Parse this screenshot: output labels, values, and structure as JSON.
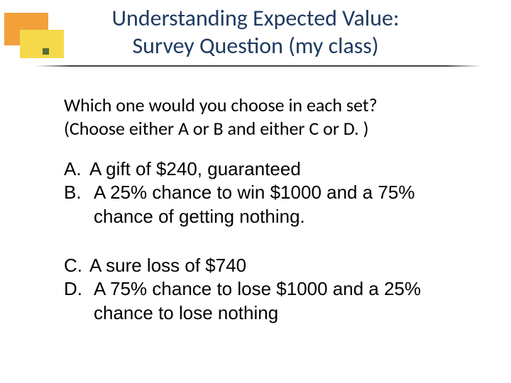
{
  "colors": {
    "orange": "#f2a13a",
    "yellow": "#f5d94a",
    "bullet": "#5a6b3a",
    "title_color": "#1f3b60",
    "body_color": "#000000",
    "hr_color": "#404040",
    "background": "#ffffff"
  },
  "typography": {
    "title_font": "Calibri",
    "title_fontsize_pt": 24,
    "title_weight": 400,
    "prompt_font": "Calibri",
    "prompt_fontsize_pt": 20,
    "options_font": "Arial",
    "options_fontsize_pt": 20
  },
  "title": {
    "line1": "Understanding Expected Value:",
    "line2": "Survey Question (my class)"
  },
  "prompt": {
    "line1": "Which one would you choose in each set?",
    "line2": "(Choose either A or B and either C or D. )"
  },
  "options": {
    "group1": [
      {
        "letter": "A.",
        "text": "A gift of $240, guaranteed"
      },
      {
        "letter": "B.",
        "text": " A 25% chance to win $1000 and a 75% chance of getting nothing."
      }
    ],
    "group2": [
      {
        "letter": "C.",
        "text": "A sure loss of $740"
      },
      {
        "letter": "D.",
        "text": "A 75% chance to lose $1000 and a 25% chance to lose nothing"
      }
    ]
  }
}
